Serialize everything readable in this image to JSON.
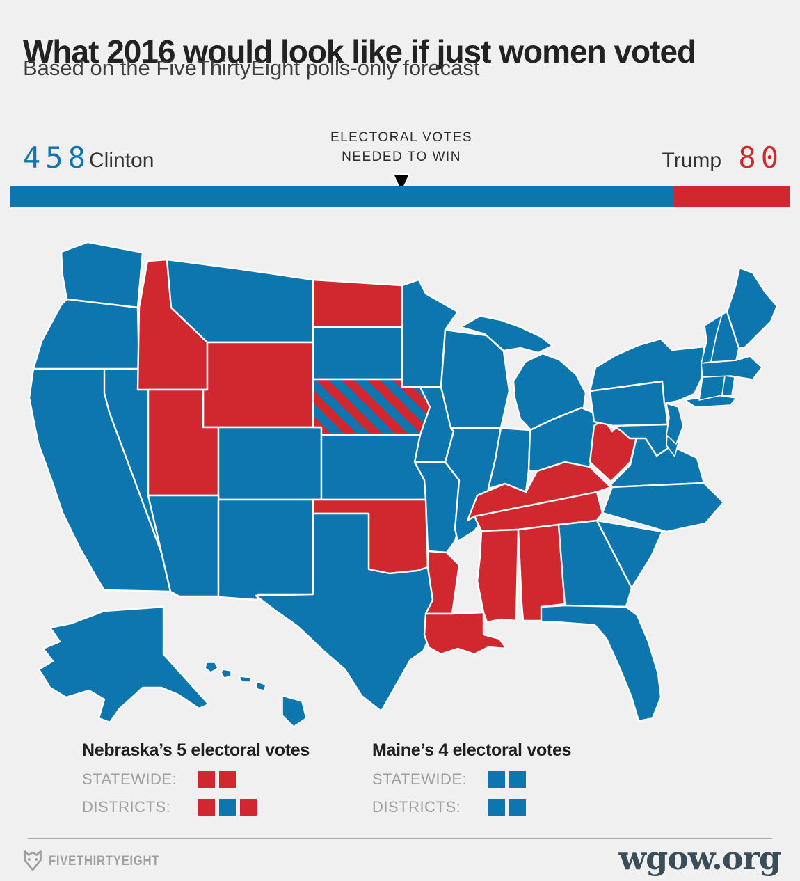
{
  "header": {
    "title": "What 2016 would look like if just women voted",
    "subtitle": "Based on the FiveThirtyEight polls-only forecast"
  },
  "bar": {
    "clinton_votes": "458",
    "clinton_name": "Clinton",
    "trump_name": "Trump",
    "trump_votes": "80",
    "clinton_ev": 458,
    "trump_ev": 80,
    "total_ev": 538,
    "marker_line1": "ELECTORAL VOTES",
    "marker_line2": "NEEDED TO WIN"
  },
  "chart_data": {
    "type": "bar",
    "title": "What 2016 would look like if just women voted",
    "subtitle": "Based on the FiveThirtyEight polls-only forecast",
    "categories": [
      "Clinton",
      "Trump"
    ],
    "values": [
      458,
      80
    ],
    "annotation": "ELECTORAL VOTES NEEDED TO WIN",
    "legend_position": "above-bar-ends"
  },
  "map": {
    "clinton_states": [
      "WA",
      "OR",
      "CA",
      "NV",
      "AZ",
      "NM",
      "CO",
      "MT",
      "SD",
      "KS",
      "TX",
      "MN",
      "IA",
      "MO",
      "WI",
      "IL",
      "MI",
      "IN",
      "OH",
      "GA",
      "FL",
      "SC",
      "NC",
      "VA",
      "MD",
      "DE",
      "NJ",
      "PA",
      "NY",
      "CT",
      "RI",
      "MA",
      "VT",
      "NH",
      "ME",
      "AK",
      "HI"
    ],
    "trump_states": [
      "ID",
      "WY",
      "UT",
      "ND",
      "OK",
      "AR",
      "LA",
      "MS",
      "AL",
      "TN",
      "KY",
      "WV"
    ],
    "split_states": [
      "NE"
    ]
  },
  "legend": {
    "nebraska": {
      "title": "Nebraska’s 5 electoral votes",
      "rows": [
        {
          "label": "STATEWIDE:",
          "squares": [
            "red",
            "red"
          ]
        },
        {
          "label": "DISTRICTS:",
          "squares": [
            "red",
            "blue",
            "red"
          ]
        }
      ]
    },
    "maine": {
      "title": "Maine’s 4 electoral votes",
      "rows": [
        {
          "label": "STATEWIDE:",
          "squares": [
            "blue",
            "blue"
          ]
        },
        {
          "label": "DISTRICTS:",
          "squares": [
            "blue",
            "blue"
          ]
        }
      ]
    }
  },
  "footer": {
    "brand": "FIVETHIRTYEIGHT",
    "watermark": "wgow.org"
  },
  "icons": {
    "footer_logo": "fox-icon",
    "needed_marker": "triangle-down-icon"
  },
  "colors": {
    "clinton_blue": "#0e76af",
    "trump_red": "#d0282e",
    "background": "#f0f0f0",
    "marker_black": "#000000",
    "gray_text": "#9e9e9e",
    "watermark_color": "#3a4e5a"
  }
}
